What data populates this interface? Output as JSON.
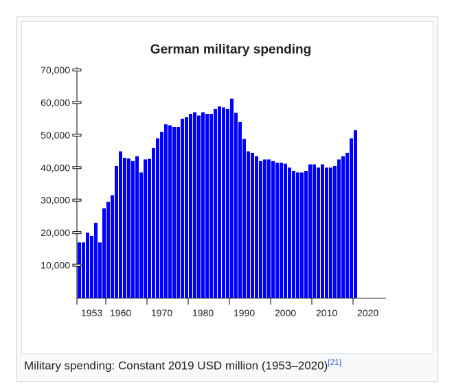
{
  "chart_data": {
    "type": "bar",
    "title": "German military spending",
    "bar_color": "#0000ff",
    "ylim": [
      0,
      70000
    ],
    "yticks": [
      10000,
      20000,
      30000,
      40000,
      50000,
      60000,
      70000
    ],
    "ytick_labels": [
      "10,000",
      "20,000",
      "30,000",
      "40,000",
      "50,000",
      "60,000",
      "70,000"
    ],
    "xtick_labels": [
      {
        "year": 1953,
        "label": "1953"
      },
      {
        "year": 1960,
        "label": "1960"
      },
      {
        "year": 1970,
        "label": "1970"
      },
      {
        "year": 1980,
        "label": "1980"
      },
      {
        "year": 1990,
        "label": "1990"
      },
      {
        "year": 2000,
        "label": "2000"
      },
      {
        "year": 2010,
        "label": "2010"
      },
      {
        "year": 2020,
        "label": "2020"
      }
    ],
    "x": [
      1953,
      1954,
      1955,
      1956,
      1957,
      1958,
      1959,
      1960,
      1961,
      1962,
      1963,
      1964,
      1965,
      1966,
      1967,
      1968,
      1969,
      1970,
      1971,
      1972,
      1973,
      1974,
      1975,
      1976,
      1977,
      1978,
      1979,
      1980,
      1981,
      1982,
      1983,
      1984,
      1985,
      1986,
      1987,
      1988,
      1989,
      1990,
      1991,
      1992,
      1993,
      1994,
      1995,
      1996,
      1997,
      1998,
      1999,
      2000,
      2001,
      2002,
      2003,
      2004,
      2005,
      2006,
      2007,
      2008,
      2009,
      2010,
      2011,
      2012,
      2013,
      2014,
      2015,
      2016,
      2017,
      2018,
      2019,
      2020
    ],
    "values": [
      17000,
      17000,
      20000,
      19000,
      23000,
      17000,
      27500,
      29500,
      31500,
      40500,
      45000,
      43000,
      42800,
      42000,
      43500,
      38500,
      42500,
      42700,
      46000,
      49000,
      51000,
      53300,
      53000,
      52500,
      52500,
      55000,
      55500,
      56500,
      57000,
      56000,
      57000,
      56500,
      56500,
      58000,
      58800,
      58500,
      58000,
      61200,
      56800,
      54000,
      48800,
      45000,
      44500,
      43500,
      42000,
      42500,
      42500,
      42000,
      41500,
      41500,
      41200,
      40000,
      39000,
      38500,
      38500,
      39000,
      41000,
      41000,
      40000,
      41000,
      40000,
      40000,
      40500,
      42500,
      43500,
      44500,
      49000,
      51500
    ]
  },
  "caption": {
    "text": "Military spending: Constant 2019 USD million (1953–2020)",
    "ref": "[21]"
  }
}
